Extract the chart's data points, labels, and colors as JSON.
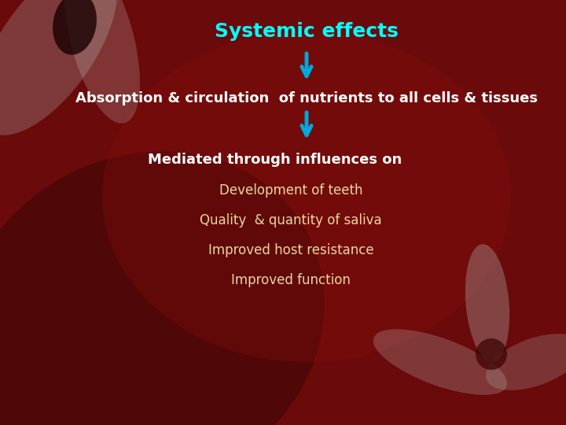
{
  "title": "Systemic effects",
  "title_color": "#00FFFF",
  "title_fontsize": 18,
  "bg_color": "#6B0A0A",
  "line1": "Absorption & circulation  of nutrients to all cells & tissues",
  "line1_color": "#FFFFFF",
  "line1_fontsize": 13,
  "mediated_text": "Mediated through influences on",
  "mediated_color": "#FFFFFF",
  "mediated_fontsize": 13,
  "bullet_items": [
    "Development of teeth",
    "Quality  & quantity of saliva",
    "Improved host resistance",
    "Improved function"
  ],
  "bullet_color": "#E8D8A0",
  "bullet_fontsize": 12,
  "arrow_color": "#00AADD"
}
